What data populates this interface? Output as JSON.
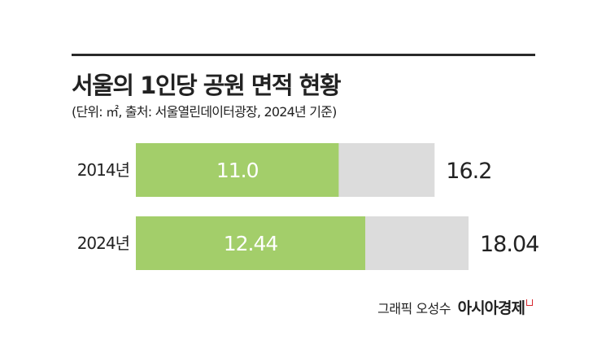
{
  "header": {
    "title": "서울의 1인당 공원 면적 현황",
    "subtitle": "(단위: ㎡, 출처: 서울열린데이터광장, 2024년 기준)"
  },
  "chart_data": {
    "type": "bar",
    "orientation": "horizontal",
    "categories": [
      "2014년",
      "2024년"
    ],
    "series": [
      {
        "values": [
          11.0,
          12.44
        ],
        "labels": [
          "11.0",
          "12.44"
        ]
      },
      {
        "values": [
          16.2,
          18.04
        ],
        "labels": [
          "16.2",
          "18.04"
        ]
      }
    ],
    "colors": {
      "inner": "#a3ce6a",
      "outer": "#dcdcdc"
    },
    "xlim": [
      0,
      18.04
    ],
    "grid": false,
    "legend": "none"
  },
  "footer": {
    "credit": "그래픽 오성수",
    "brand": "아시아경제",
    "brand_color": "#d7282f"
  }
}
